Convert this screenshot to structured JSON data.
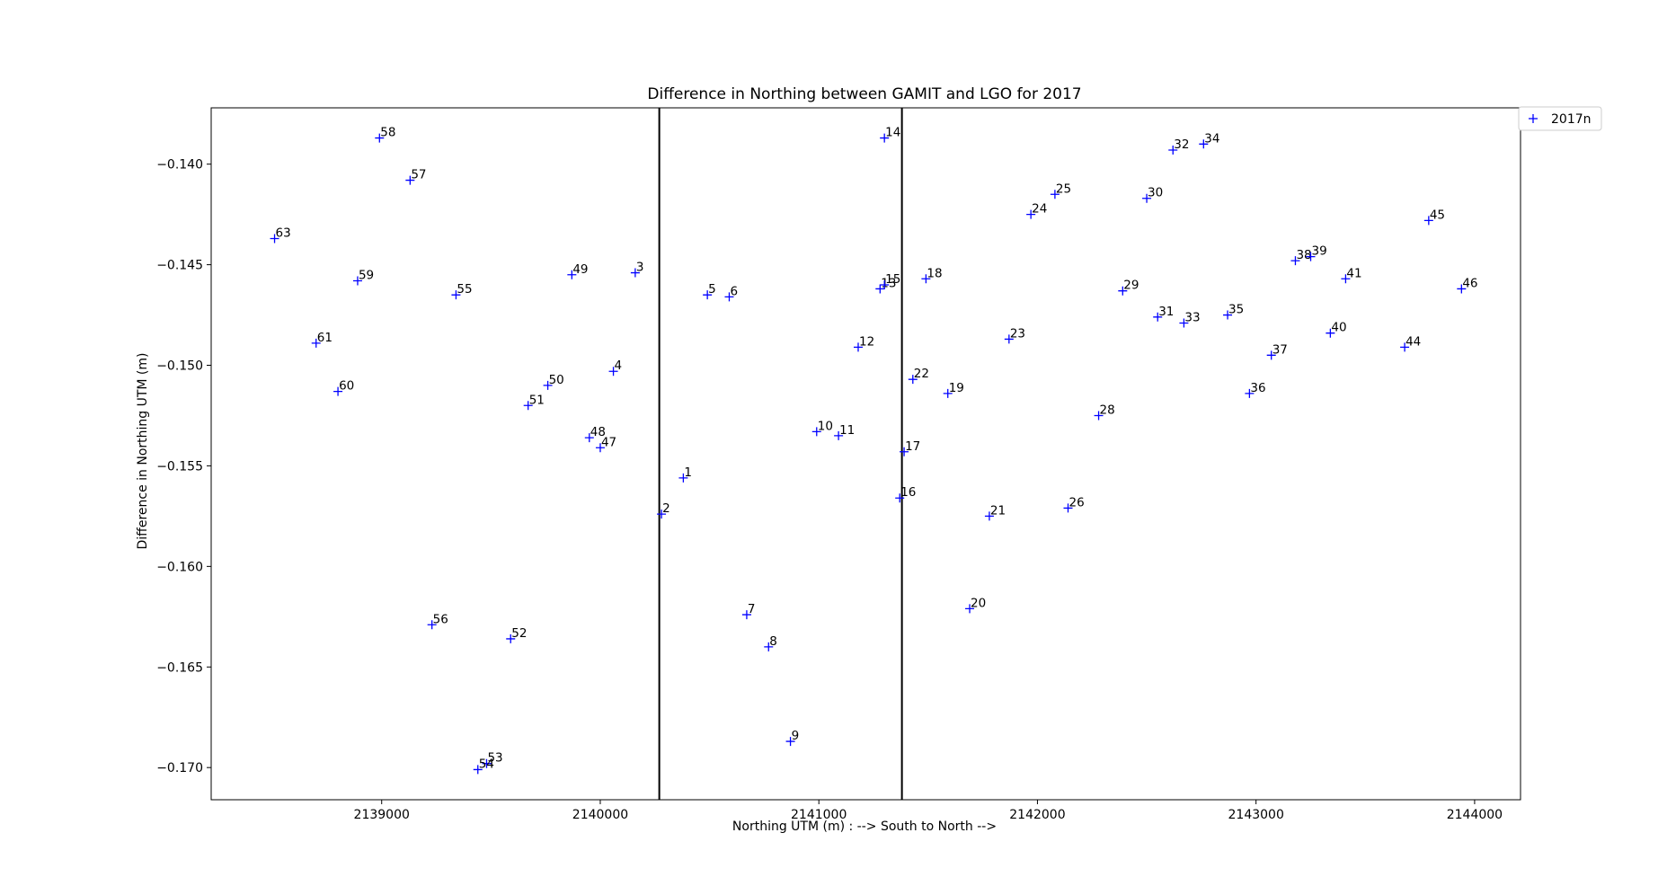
{
  "chart_data": {
    "type": "scatter",
    "title": "Difference in Northing between GAMIT and LGO for 2017",
    "xlabel": "Northing UTM (m) : --> South to North -->",
    "ylabel": "Difference in Northing UTM (m)",
    "xlim": [
      2138220,
      2144210
    ],
    "ylim": [
      -0.1716,
      -0.1372
    ],
    "xticks": [
      2139000,
      2140000,
      2141000,
      2142000,
      2143000,
      2144000
    ],
    "xtick_labels": [
      "2139000",
      "2140000",
      "2141000",
      "2142000",
      "2143000",
      "2144000"
    ],
    "yticks": [
      -0.14,
      -0.145,
      -0.15,
      -0.155,
      -0.16,
      -0.165,
      -0.17
    ],
    "ytick_labels": [
      "−0.140",
      "−0.145",
      "−0.150",
      "−0.155",
      "−0.160",
      "−0.165",
      "−0.170"
    ],
    "vlines": [
      2140270,
      2141380
    ],
    "marker": "+",
    "color": "#0000ff",
    "legend": {
      "label": "2017n",
      "placement": "upper-right-outside"
    },
    "series": [
      {
        "name": "2017n",
        "points": [
          {
            "label": "1",
            "x": 2140380,
            "y": -0.1556
          },
          {
            "label": "2",
            "x": 2140280,
            "y": -0.1574
          },
          {
            "label": "3",
            "x": 2140160,
            "y": -0.1454
          },
          {
            "label": "4",
            "x": 2140060,
            "y": -0.1503
          },
          {
            "label": "5",
            "x": 2140490,
            "y": -0.1465
          },
          {
            "label": "6",
            "x": 2140590,
            "y": -0.1466
          },
          {
            "label": "7",
            "x": 2140670,
            "y": -0.1624
          },
          {
            "label": "8",
            "x": 2140770,
            "y": -0.164
          },
          {
            "label": "9",
            "x": 2140870,
            "y": -0.1687
          },
          {
            "label": "10",
            "x": 2140990,
            "y": -0.1533
          },
          {
            "label": "11",
            "x": 2141090,
            "y": -0.1535
          },
          {
            "label": "12",
            "x": 2141180,
            "y": -0.1491
          },
          {
            "label": "13",
            "x": 2141280,
            "y": -0.1462
          },
          {
            "label": "14",
            "x": 2141300,
            "y": -0.1387
          },
          {
            "label": "15",
            "x": 2141300,
            "y": -0.146
          },
          {
            "label": "16",
            "x": 2141370,
            "y": -0.1566
          },
          {
            "label": "17",
            "x": 2141390,
            "y": -0.1543
          },
          {
            "label": "18",
            "x": 2141490,
            "y": -0.1457
          },
          {
            "label": "19",
            "x": 2141590,
            "y": -0.1514
          },
          {
            "label": "20",
            "x": 2141690,
            "y": -0.1621
          },
          {
            "label": "21",
            "x": 2141780,
            "y": -0.1575
          },
          {
            "label": "22",
            "x": 2141430,
            "y": -0.1507
          },
          {
            "label": "23",
            "x": 2141870,
            "y": -0.1487
          },
          {
            "label": "24",
            "x": 2141970,
            "y": -0.1425
          },
          {
            "label": "25",
            "x": 2142080,
            "y": -0.1415
          },
          {
            "label": "26",
            "x": 2142140,
            "y": -0.1571
          },
          {
            "label": "28",
            "x": 2142280,
            "y": -0.1525
          },
          {
            "label": "29",
            "x": 2142390,
            "y": -0.1463
          },
          {
            "label": "30",
            "x": 2142500,
            "y": -0.1417
          },
          {
            "label": "31",
            "x": 2142550,
            "y": -0.1476
          },
          {
            "label": "32",
            "x": 2142620,
            "y": -0.1393
          },
          {
            "label": "33",
            "x": 2142670,
            "y": -0.1479
          },
          {
            "label": "34",
            "x": 2142760,
            "y": -0.139
          },
          {
            "label": "35",
            "x": 2142870,
            "y": -0.1475
          },
          {
            "label": "36",
            "x": 2142970,
            "y": -0.1514
          },
          {
            "label": "37",
            "x": 2143070,
            "y": -0.1495
          },
          {
            "label": "38",
            "x": 2143180,
            "y": -0.1448
          },
          {
            "label": "39",
            "x": 2143250,
            "y": -0.1446
          },
          {
            "label": "40",
            "x": 2143340,
            "y": -0.1484
          },
          {
            "label": "41",
            "x": 2143410,
            "y": -0.1457
          },
          {
            "label": "44",
            "x": 2143680,
            "y": -0.1491
          },
          {
            "label": "45",
            "x": 2143790,
            "y": -0.1428
          },
          {
            "label": "46",
            "x": 2143940,
            "y": -0.1462
          },
          {
            "label": "47",
            "x": 2140000,
            "y": -0.1541
          },
          {
            "label": "48",
            "x": 2139950,
            "y": -0.1536
          },
          {
            "label": "49",
            "x": 2139870,
            "y": -0.1455
          },
          {
            "label": "50",
            "x": 2139760,
            "y": -0.151
          },
          {
            "label": "51",
            "x": 2139670,
            "y": -0.152
          },
          {
            "label": "52",
            "x": 2139590,
            "y": -0.1636
          },
          {
            "label": "53",
            "x": 2139480,
            "y": -0.1698
          },
          {
            "label": "54",
            "x": 2139440,
            "y": -0.1701
          },
          {
            "label": "55",
            "x": 2139340,
            "y": -0.1465
          },
          {
            "label": "56",
            "x": 2139230,
            "y": -0.1629
          },
          {
            "label": "57",
            "x": 2139130,
            "y": -0.1408
          },
          {
            "label": "58",
            "x": 2138990,
            "y": -0.1387
          },
          {
            "label": "59",
            "x": 2138890,
            "y": -0.1458
          },
          {
            "label": "60",
            "x": 2138800,
            "y": -0.1513
          },
          {
            "label": "61",
            "x": 2138700,
            "y": -0.1489
          },
          {
            "label": "63",
            "x": 2138510,
            "y": -0.1437
          }
        ]
      }
    ]
  }
}
